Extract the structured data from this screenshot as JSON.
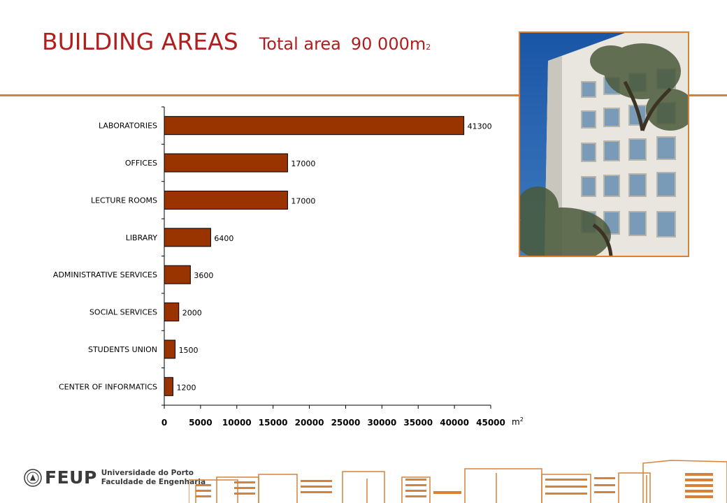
{
  "slide": {
    "title": "BUILDING AREAS",
    "subtitle_label": "Total area",
    "subtitle_value": "90 000",
    "subtitle_unit": "m",
    "subtitle_unit_sup": "2"
  },
  "logo": {
    "name": "FEUP",
    "line1": "Universidade do Porto",
    "line2": "Faculdade de Engenharia"
  },
  "colors": {
    "title": "#b01e1e",
    "bar": "#993300",
    "accent": "#d98039"
  },
  "chart_data": {
    "type": "bar",
    "orientation": "horizontal",
    "categories": [
      "LABORATORIES",
      "OFFICES",
      "LECTURE ROOMS",
      "LIBRARY",
      "ADMINISTRATIVE SERVICES",
      "SOCIAL SERVICES",
      "STUDENTS UNION",
      "CENTER OF INFORMATICS"
    ],
    "values": [
      41300,
      17000,
      17000,
      6400,
      3600,
      2000,
      1500,
      1200
    ],
    "data_labels": [
      "41300",
      "17000",
      "17000",
      "6400",
      "3600",
      "2000",
      "1500",
      "1200"
    ],
    "xlim": [
      0,
      45000
    ],
    "xticks": [
      0,
      5000,
      10000,
      15000,
      20000,
      25000,
      30000,
      35000,
      40000,
      45000
    ],
    "xtick_labels": [
      "0",
      "5000",
      "10000",
      "15000",
      "20000",
      "25000",
      "30000",
      "35000",
      "40000",
      "45000"
    ],
    "xlabel": "m",
    "xlabel_sup": "2",
    "title": "",
    "ylabel": "",
    "grid": false,
    "legend": "none"
  }
}
